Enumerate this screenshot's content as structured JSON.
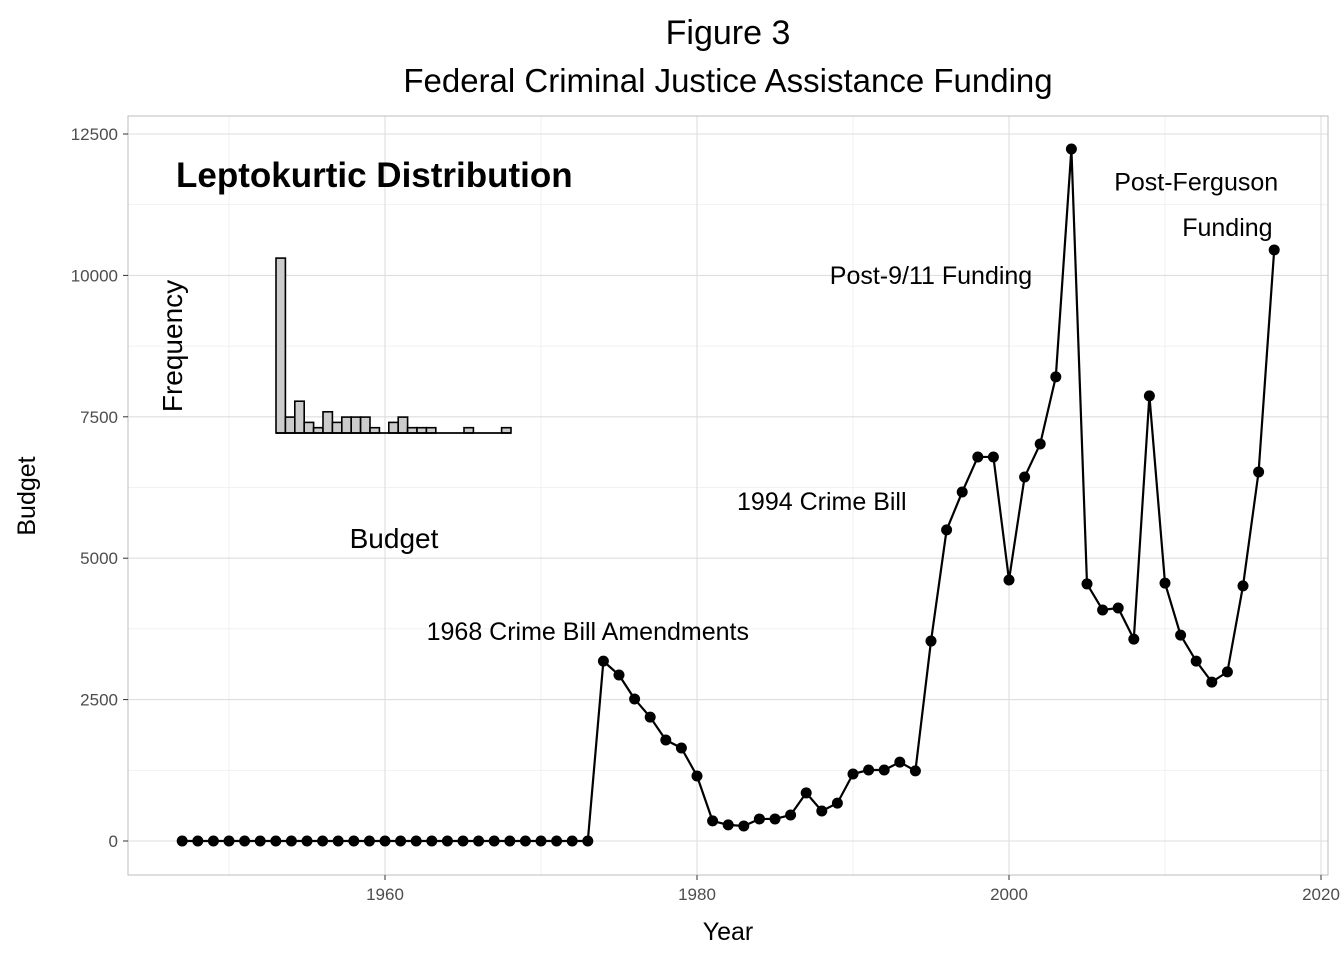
{
  "chart_data": {
    "type": "line",
    "title": "Figure 3",
    "subtitle": "Federal Criminal Justice Assistance Funding",
    "xlabel": "Year",
    "ylabel": "Budget",
    "xlim": [
      1943,
      2020
    ],
    "ylim": [
      -600,
      12800
    ],
    "grid": true,
    "x_ticks": [
      1960,
      1980,
      2000,
      2020
    ],
    "y_ticks": [
      0,
      2500,
      5000,
      7500,
      10000,
      12500
    ],
    "x": [
      1947,
      1948,
      1949,
      1950,
      1951,
      1952,
      1953,
      1954,
      1955,
      1956,
      1957,
      1958,
      1959,
      1960,
      1961,
      1962,
      1963,
      1964,
      1965,
      1966,
      1967,
      1968,
      1969,
      1970,
      1971,
      1972,
      1973,
      1974,
      1975,
      1976,
      1977,
      1978,
      1979,
      1980,
      1981,
      1982,
      1983,
      1984,
      1985,
      1986,
      1987,
      1988,
      1989,
      1990,
      1991,
      1992,
      1993,
      1994,
      1995,
      1996,
      1997,
      1998,
      1999,
      2000,
      2001,
      2002,
      2003,
      2004,
      2005,
      2006,
      2007,
      2008,
      2009,
      2010,
      2011,
      2012,
      2013,
      2014,
      2015,
      2016,
      2017
    ],
    "y": [
      0,
      0,
      0,
      0,
      0,
      0,
      0,
      0,
      0,
      0,
      0,
      0,
      0,
      0,
      0,
      0,
      0,
      0,
      0,
      0,
      0,
      0,
      0,
      0,
      0,
      0,
      0,
      3180,
      2935,
      2510,
      2190,
      1785,
      1645,
      1150,
      355,
      285,
      265,
      390,
      390,
      460,
      850,
      530,
      670,
      1185,
      1255,
      1255,
      1395,
      1240,
      3535,
      5500,
      6170,
      6790,
      6790,
      4615,
      6435,
      7020,
      8205,
      12235,
      4545,
      4085,
      4120,
      3570,
      7870,
      4560,
      3640,
      3180,
      2810,
      2990,
      4510,
      6525,
      10450
    ],
    "annotations": [
      {
        "text": "1968 Crime Bill Amendments",
        "x": 1973,
        "y": 3550
      },
      {
        "text": "1994 Crime Bill",
        "x": 1988,
        "y": 5850
      },
      {
        "text": "Post-9/11 Funding",
        "x": 1995,
        "y": 9850
      },
      {
        "text": "Post-Ferguson",
        "x": 2012,
        "y": 11500
      },
      {
        "text": "Funding",
        "x": 2014,
        "y": 10700
      }
    ],
    "inset": {
      "type": "histogram",
      "title": "Leptokurtic Distribution",
      "xlabel": "Budget",
      "ylabel": "Frequency",
      "counts": [
        33,
        3,
        6,
        2,
        1,
        4,
        2,
        3,
        3,
        3,
        1,
        0,
        2,
        3,
        1,
        1,
        1,
        0,
        0,
        0,
        1,
        0,
        0,
        0,
        1
      ],
      "fill": "#cccccc"
    }
  }
}
